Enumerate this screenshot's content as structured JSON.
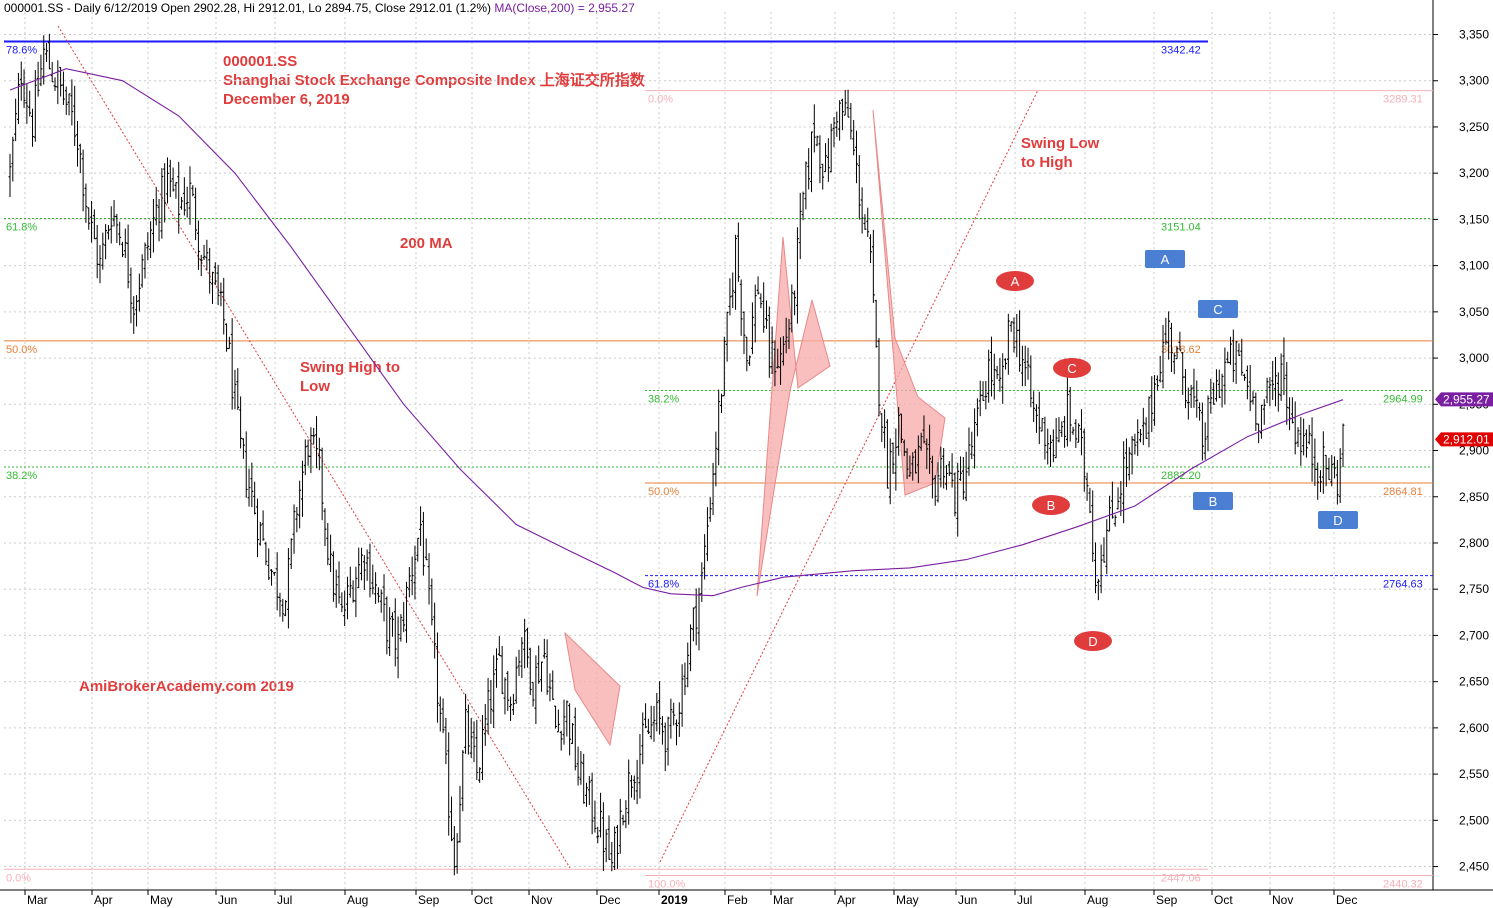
{
  "header": {
    "text": "000001.SS - Daily 6/12/2019 Open 2902.28, Hi 2912.01, Lo 2894.75, Close 2912.01 (1.2%)",
    "ma_text": "MA(Close,200) = 2,955.27"
  },
  "titles": {
    "line1": "000001.SS",
    "line2": "Shanghai Stock Exchange Composite Index  上海证交所指数",
    "line3": "December 6, 2019"
  },
  "notes": {
    "ma200": "200 MA",
    "swing_high_low_1": "Swing High to",
    "swing_high_low_2": "Low",
    "swing_low_high_1": "Swing Low",
    "swing_low_high_2": "to High",
    "watermark": "AmiBrokerAcademy.com  2019"
  },
  "colors": {
    "price": "#000000",
    "ma200": "#7a1fa2",
    "annotation": "#e03c3c",
    "label_red": "#e03c3c",
    "label_blue": "#4a7fd4",
    "fib_green": "#33bb33",
    "fib_orange": "#e8803a",
    "fib_pink": "#f4b0b8",
    "fib_blue": "#1a1aff"
  },
  "chart_data": {
    "type": "candlestick",
    "symbol": "000001.SS",
    "period": "Daily",
    "ylim": [
      2435,
      3385
    ],
    "y_ticks": [
      2450,
      2500,
      2550,
      2600,
      2650,
      2700,
      2750,
      2800,
      2850,
      2900,
      2950,
      3000,
      3050,
      3100,
      3150,
      3200,
      3250,
      3300,
      3350
    ],
    "y_tick_labels": [
      "2,450",
      "2,500",
      "2,550",
      "2,600",
      "2,650",
      "2,700",
      "2,750",
      "2,800",
      "2,850",
      "2,900",
      "2,950",
      "3,000",
      "3,050",
      "3,100",
      "3,150",
      "3,200",
      "3,250",
      "3,300",
      "3,350"
    ],
    "x_months": [
      {
        "label": "Mar",
        "bold": false
      },
      {
        "label": "Apr",
        "bold": false
      },
      {
        "label": "May",
        "bold": false
      },
      {
        "label": "Jun",
        "bold": false
      },
      {
        "label": "Jul",
        "bold": false
      },
      {
        "label": "Aug",
        "bold": false
      },
      {
        "label": "Sep",
        "bold": false
      },
      {
        "label": "Oct",
        "bold": false
      },
      {
        "label": "Nov",
        "bold": false
      },
      {
        "label": "Dec",
        "bold": false
      },
      {
        "label": "2019",
        "bold": true
      },
      {
        "label": "Feb",
        "bold": false
      },
      {
        "label": "Mar",
        "bold": false
      },
      {
        "label": "Apr",
        "bold": false
      },
      {
        "label": "May",
        "bold": false
      },
      {
        "label": "Jun",
        "bold": false
      },
      {
        "label": "Jul",
        "bold": false
      },
      {
        "label": "Aug",
        "bold": false
      },
      {
        "label": "Sep",
        "bold": false
      },
      {
        "label": "Oct",
        "bold": false
      },
      {
        "label": "Nov",
        "bold": false
      },
      {
        "label": "Dec",
        "bold": false
      }
    ],
    "close_path": [
      [
        0,
        3200
      ],
      [
        4,
        3310
      ],
      [
        8,
        3255
      ],
      [
        12,
        3330
      ],
      [
        18,
        3290
      ],
      [
        22,
        3260
      ],
      [
        24,
        3240
      ],
      [
        28,
        3150
      ],
      [
        32,
        3100
      ],
      [
        36,
        3160
      ],
      [
        40,
        3130
      ],
      [
        44,
        3060
      ],
      [
        48,
        3110
      ],
      [
        52,
        3160
      ],
      [
        56,
        3190
      ],
      [
        60,
        3165
      ],
      [
        64,
        3180
      ],
      [
        68,
        3120
      ],
      [
        72,
        3080
      ],
      [
        76,
        3040
      ],
      [
        78,
        3000
      ],
      [
        82,
        2900
      ],
      [
        86,
        2850
      ],
      [
        90,
        2800
      ],
      [
        94,
        2760
      ],
      [
        98,
        2740
      ],
      [
        102,
        2840
      ],
      [
        106,
        2910
      ],
      [
        110,
        2880
      ],
      [
        114,
        2770
      ],
      [
        118,
        2720
      ],
      [
        122,
        2760
      ],
      [
        126,
        2790
      ],
      [
        130,
        2750
      ],
      [
        134,
        2710
      ],
      [
        138,
        2690
      ],
      [
        142,
        2760
      ],
      [
        146,
        2820
      ],
      [
        150,
        2700
      ],
      [
        154,
        2580
      ],
      [
        158,
        2460
      ],
      [
        162,
        2600
      ],
      [
        166,
        2550
      ],
      [
        170,
        2620
      ],
      [
        174,
        2670
      ],
      [
        178,
        2630
      ],
      [
        182,
        2700
      ],
      [
        186,
        2650
      ],
      [
        190,
        2680
      ],
      [
        194,
        2600
      ],
      [
        198,
        2620
      ],
      [
        202,
        2550
      ],
      [
        206,
        2520
      ],
      [
        210,
        2490
      ],
      [
        214,
        2450
      ],
      [
        218,
        2520
      ],
      [
        222,
        2560
      ],
      [
        226,
        2590
      ],
      [
        230,
        2610
      ],
      [
        234,
        2590
      ],
      [
        238,
        2630
      ],
      [
        242,
        2700
      ],
      [
        246,
        2760
      ],
      [
        250,
        2880
      ],
      [
        254,
        3000
      ],
      [
        258,
        3120
      ],
      [
        262,
        3000
      ],
      [
        266,
        3080
      ],
      [
        270,
        3000
      ],
      [
        274,
        3000
      ],
      [
        278,
        3050
      ],
      [
        282,
        3170
      ],
      [
        286,
        3250
      ],
      [
        290,
        3200
      ],
      [
        294,
        3270
      ],
      [
        298,
        3260
      ],
      [
        302,
        3180
      ],
      [
        306,
        3100
      ],
      [
        308,
        3000
      ],
      [
        312,
        2880
      ],
      [
        316,
        2930
      ],
      [
        320,
        2870
      ],
      [
        324,
        2900
      ],
      [
        328,
        2860
      ],
      [
        332,
        2890
      ],
      [
        336,
        2850
      ],
      [
        340,
        2880
      ],
      [
        344,
        2930
      ],
      [
        348,
        2990
      ],
      [
        352,
        2960
      ],
      [
        356,
        3040
      ],
      [
        360,
        3000
      ],
      [
        364,
        2940
      ],
      [
        368,
        2920
      ],
      [
        372,
        2900
      ],
      [
        376,
        2940
      ],
      [
        380,
        2910
      ],
      [
        384,
        2850
      ],
      [
        386,
        2760
      ],
      [
        388,
        2790
      ],
      [
        392,
        2830
      ],
      [
        396,
        2880
      ],
      [
        400,
        2900
      ],
      [
        404,
        2920
      ],
      [
        408,
        2990
      ],
      [
        412,
        3030
      ],
      [
        416,
        2990
      ],
      [
        420,
        2960
      ],
      [
        424,
        2910
      ],
      [
        428,
        2960
      ],
      [
        432,
        2990
      ],
      [
        436,
        3000
      ],
      [
        440,
        2970
      ],
      [
        444,
        2940
      ],
      [
        448,
        2960
      ],
      [
        452,
        2990
      ],
      [
        456,
        2930
      ],
      [
        460,
        2910
      ],
      [
        464,
        2890
      ],
      [
        468,
        2880
      ],
      [
        472,
        2870
      ],
      [
        474,
        2912
      ]
    ],
    "ma200_path": [
      [
        0,
        3290
      ],
      [
        20,
        3313
      ],
      [
        40,
        3300
      ],
      [
        60,
        3262
      ],
      [
        80,
        3200
      ],
      [
        100,
        3120
      ],
      [
        120,
        3035
      ],
      [
        140,
        2950
      ],
      [
        160,
        2880
      ],
      [
        180,
        2820
      ],
      [
        200,
        2790
      ],
      [
        215,
        2768
      ],
      [
        225,
        2752
      ],
      [
        235,
        2745
      ],
      [
        250,
        2743
      ],
      [
        260,
        2752
      ],
      [
        275,
        2763
      ],
      [
        300,
        2770
      ],
      [
        320,
        2773
      ],
      [
        340,
        2782
      ],
      [
        360,
        2798
      ],
      [
        380,
        2818
      ],
      [
        400,
        2840
      ],
      [
        420,
        2880
      ],
      [
        440,
        2915
      ],
      [
        460,
        2940
      ],
      [
        474,
        2955
      ]
    ],
    "fib_left": [
      {
        "pct": "78.6%",
        "value": 3342.42,
        "price_label": "3342.42",
        "color": "#1a1aff",
        "style": "solid"
      },
      {
        "pct": "61.8%",
        "value": 3151.04,
        "price_label": "3151.04",
        "color": "#33bb33",
        "style": "dotted"
      },
      {
        "pct": "50.0%",
        "value": 3018.62,
        "price_label": "3018.62",
        "color": "#e8803a",
        "style": "solid"
      },
      {
        "pct": "38.2%",
        "value": 2882.2,
        "price_label": "2882.20",
        "color": "#33bb33",
        "style": "dotted"
      },
      {
        "pct": "0.0%",
        "value": 2447.06,
        "price_label": "2447.06",
        "color": "#f4b0b8",
        "style": "solid"
      }
    ],
    "fib_right": [
      {
        "pct": "0.0%",
        "value": 3289.31,
        "price_label": "3289.31",
        "color": "#f4b0b8",
        "style": "solid"
      },
      {
        "pct": "38.2%",
        "value": 2964.99,
        "price_label": "2964.99",
        "color": "#33bb33",
        "style": "dotted"
      },
      {
        "pct": "50.0%",
        "value": 2864.81,
        "price_label": "2864.81",
        "color": "#e8803a",
        "style": "solid"
      },
      {
        "pct": "61.8%",
        "value": 2764.63,
        "price_label": "2764.63",
        "color": "#1a1aff",
        "style": "dashed"
      },
      {
        "pct": "100.0%",
        "value": 2440.32,
        "price_label": "2440.32",
        "color": "#f4b0b8",
        "style": "solid"
      }
    ],
    "price_tags": [
      {
        "label": "2,955.27",
        "value": 2955.27,
        "color": "#7a1fa2"
      },
      {
        "label": "2,912.01",
        "value": 2912.01,
        "color": "#e00000"
      }
    ],
    "pattern_labels": [
      {
        "text": "A",
        "shape": "ellipse",
        "color": "#e03c3c"
      },
      {
        "text": "C",
        "shape": "ellipse",
        "color": "#e03c3c"
      },
      {
        "text": "B",
        "shape": "ellipse",
        "color": "#e03c3c"
      },
      {
        "text": "D",
        "shape": "ellipse",
        "color": "#e03c3c"
      },
      {
        "text": "A",
        "shape": "rect",
        "color": "#4a7fd4"
      },
      {
        "text": "C",
        "shape": "rect",
        "color": "#4a7fd4"
      },
      {
        "text": "B",
        "shape": "rect",
        "color": "#4a7fd4"
      },
      {
        "text": "D",
        "shape": "rect",
        "color": "#4a7fd4"
      }
    ]
  }
}
